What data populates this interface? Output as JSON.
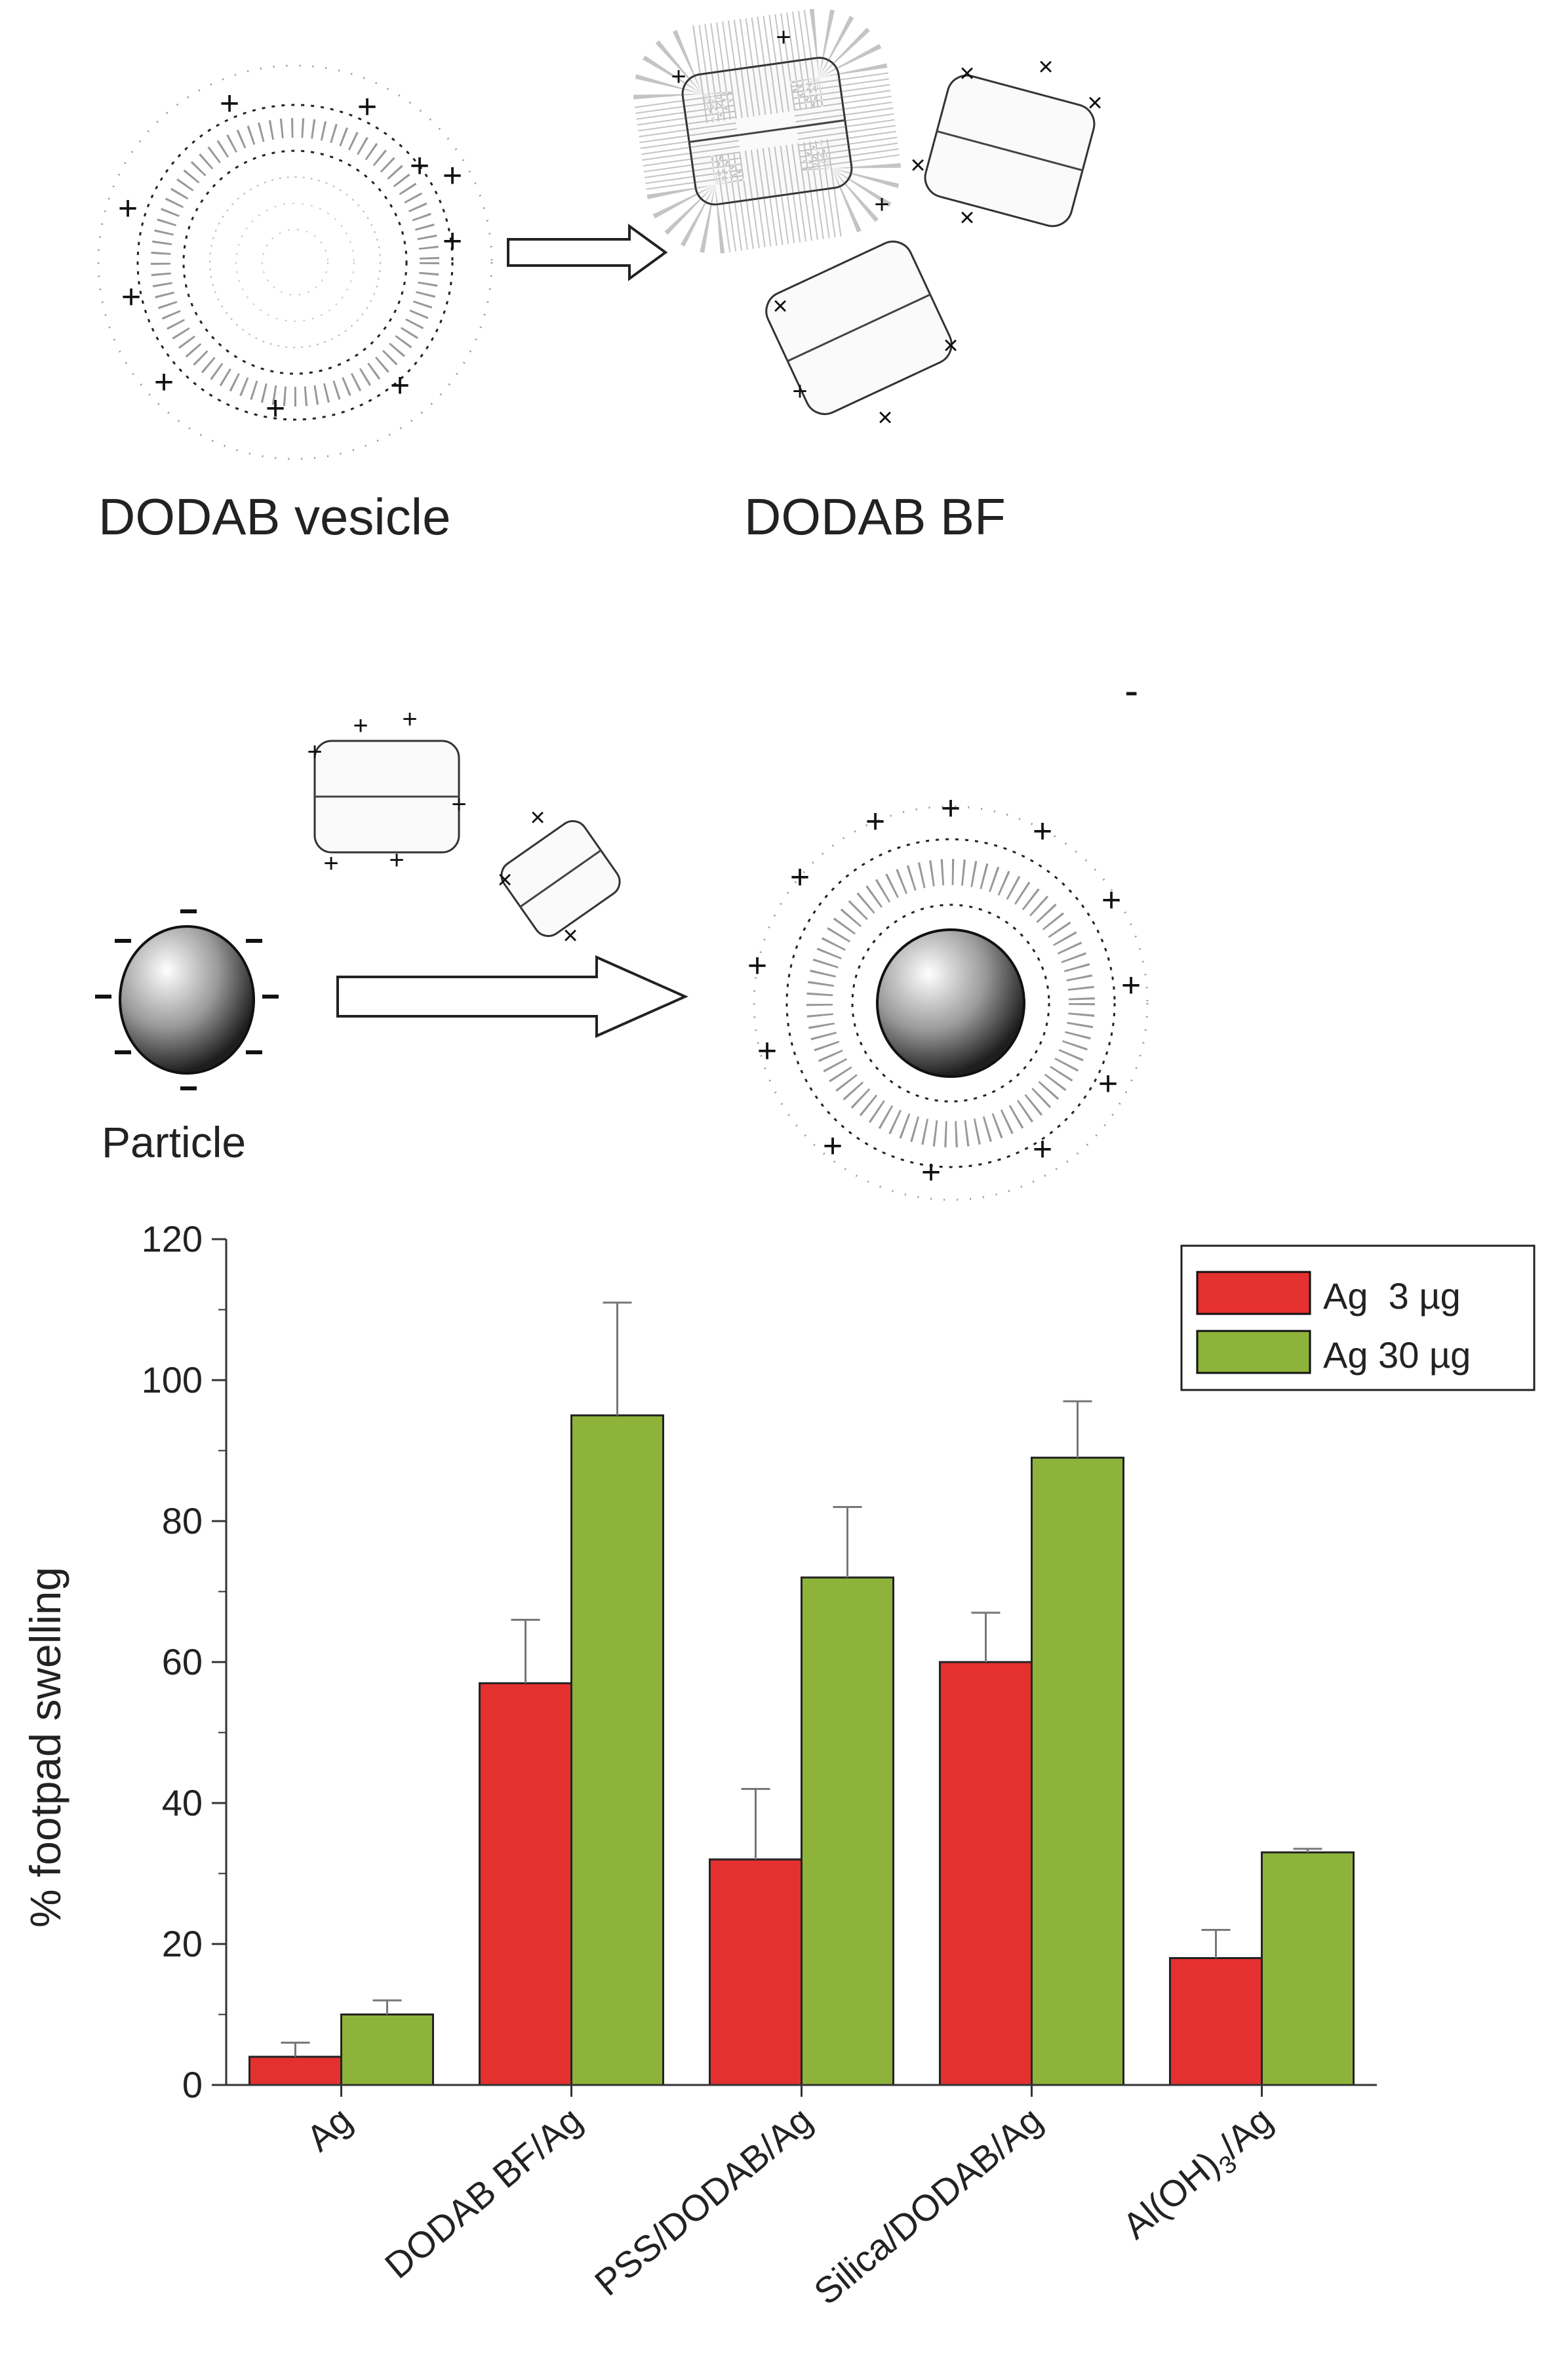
{
  "diagram": {
    "top_left_label": "DODAB vesicle",
    "top_right_label": "DODAB BF",
    "particle_label": "Particle"
  },
  "chart_data": {
    "type": "bar",
    "title": "",
    "xlabel": "",
    "ylabel": "% footpad swelling",
    "ylim": [
      0,
      120
    ],
    "yticks": [
      0,
      20,
      40,
      60,
      80,
      100,
      120
    ],
    "grid": false,
    "legend_position": "top-right",
    "categories": [
      "Ag",
      "DODAB BF/Ag",
      "PSS/DODAB/Ag",
      "Silica/DODAB/Ag",
      "Al(OH)3/Ag"
    ],
    "series": [
      {
        "name": "Ag  3 µg",
        "color": "#e53030",
        "values": [
          4,
          57,
          32,
          60,
          18
        ],
        "errors": [
          2,
          9,
          10,
          7,
          4
        ]
      },
      {
        "name": "Ag 30 µg",
        "color": "#8db33a",
        "values": [
          10,
          95,
          72,
          89,
          33
        ],
        "errors": [
          2,
          16,
          10,
          8,
          0.5
        ]
      }
    ]
  }
}
